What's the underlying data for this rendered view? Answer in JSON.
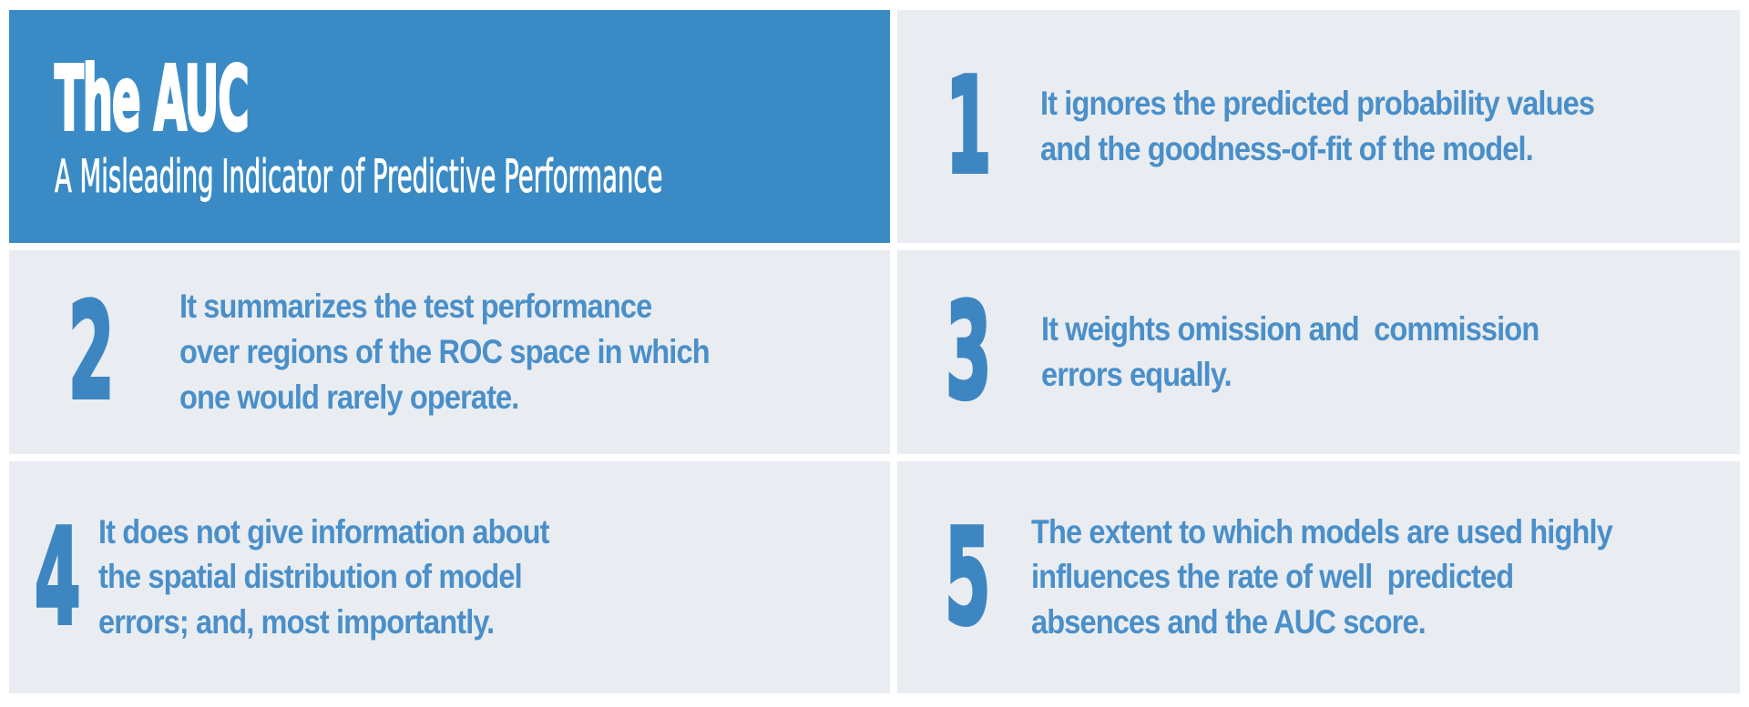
{
  "title_card": {
    "title": "The AUC",
    "subtitle": "A Misleading Indicator of Predictive Performance"
  },
  "points": [
    {
      "number": "1",
      "text": "It ignores the predicted probability values\nand the goodness-of-fit of the model."
    },
    {
      "number": "2",
      "text": "It summarizes the test performance\nover regions of the ROC space in which\none would rarely operate."
    },
    {
      "number": "3",
      "text": "It weights omission and  commission\nerrors equally."
    },
    {
      "number": "4",
      "text": "It does not give information about\nthe spatial distribution of model\nerrors; and, most importantly."
    },
    {
      "number": "5",
      "text": "The extent to which models are used highly\ninfluences the rate of well  predicted\nabsences and the AUC score."
    }
  ],
  "colors": {
    "header_blue": "#3a8bc5",
    "cell_background": "#e9edf1",
    "body_text_blue": "#4a8fc9",
    "number_blue": "#3d86c1",
    "page_background": "#ffffff"
  }
}
